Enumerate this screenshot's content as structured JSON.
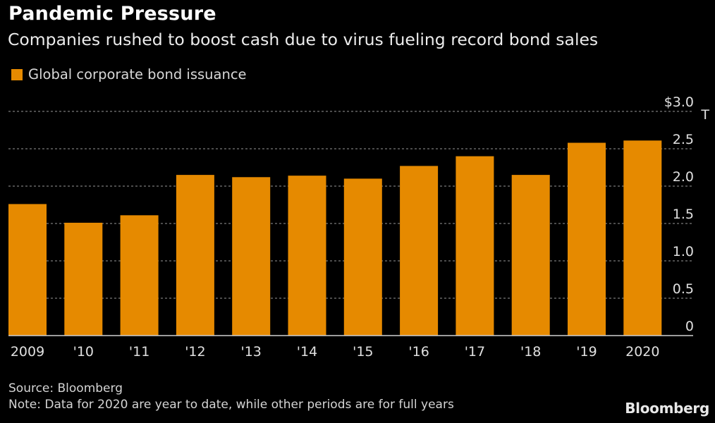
{
  "header": {
    "title": "Pandemic Pressure",
    "subtitle": "Companies rushed to boost cash due to virus fueling record bond sales"
  },
  "colors": {
    "bar": "#E68A00",
    "background": "#000000",
    "grid": "#7a7a7a",
    "axis": "#cfcfcf"
  },
  "chart_data": {
    "type": "bar",
    "title": "Pandemic Pressure",
    "subtitle": "Companies rushed to boost cash due to virus fueling record bond sales",
    "categories": [
      "2009",
      "'10",
      "'11",
      "'12",
      "'13",
      "'14",
      "'15",
      "'16",
      "'17",
      "'18",
      "'19",
      "2020"
    ],
    "series": [
      {
        "name": "Global corporate bond issuance",
        "values": [
          1.76,
          1.51,
          1.61,
          2.15,
          2.12,
          2.14,
          2.1,
          2.27,
          2.4,
          2.15,
          2.58,
          2.61
        ]
      }
    ],
    "xlabel": "",
    "ylabel": "$ T",
    "ylim": [
      0,
      3.0
    ],
    "yticks": [
      0,
      0.5,
      1.0,
      1.5,
      2.0,
      2.5,
      3.0
    ],
    "ytick_labels": [
      "0",
      "0.5",
      "1.0",
      "1.5",
      "2.0",
      "2.5",
      "$3.0"
    ],
    "unit_suffix": "T",
    "grid": true,
    "legend": "top-left",
    "yaxis_side": "right"
  },
  "legend": {
    "label": "Global corporate bond issuance"
  },
  "footer": {
    "source": "Source: Bloomberg",
    "note": "Note: Data for 2020 are year to date, while other periods are for full years",
    "brand": "Bloomberg"
  }
}
